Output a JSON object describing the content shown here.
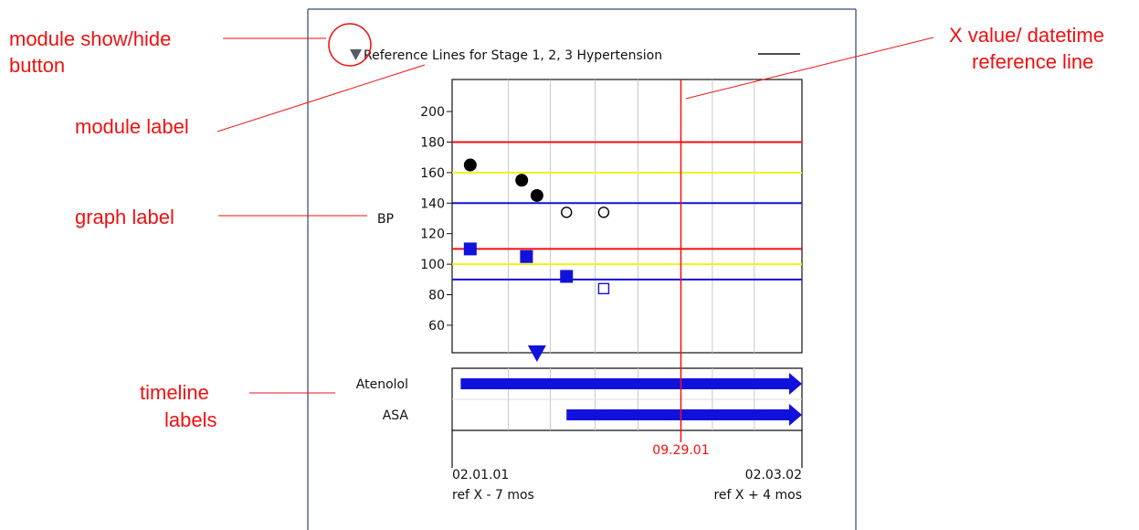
{
  "callouts": {
    "show_hide": [
      "module show/hide",
      "button"
    ],
    "module_label": "module label",
    "graph_label": "graph label",
    "timeline_labels": [
      "timeline",
      "labels"
    ],
    "ref_line": [
      "X value/ datetime",
      "reference line"
    ]
  },
  "module": {
    "toggle_icon": "triangle-down-icon",
    "title": "Reference Lines for Stage 1, 2, 3 Hypertension"
  },
  "colors": {
    "annotation": "#ee1111",
    "stage3": "#ee1111",
    "stage2": "#f2f21a",
    "stage1": "#1111dd",
    "marker": "#1111dd",
    "reference": "#ee1111"
  },
  "chart_data": {
    "type": "scatter",
    "ylabel": "BP",
    "y_ticks": [
      200,
      180,
      160,
      140,
      120,
      100,
      80,
      60
    ],
    "ylim": [
      42,
      221
    ],
    "x_dates": {
      "start": "02.01.01",
      "end": "02.03.02",
      "reference": "09.29.01"
    },
    "x_grid_dates": [
      "04.01.01",
      "05.15.01",
      "07.01.01",
      "08.15.01",
      "11.01.01",
      "12.15.01"
    ],
    "reference_lines": [
      {
        "value": 180,
        "color": "#ee1111"
      },
      {
        "value": 160,
        "color": "#f2f21a"
      },
      {
        "value": 140,
        "color": "#1111dd"
      },
      {
        "value": 110,
        "color": "#ee1111"
      },
      {
        "value": 100,
        "color": "#f2f21a"
      },
      {
        "value": 90,
        "color": "#1111dd"
      }
    ],
    "series": [
      {
        "marker": "circle",
        "points": [
          {
            "date": "02.20.01",
            "y": 165,
            "filled": true
          },
          {
            "date": "04.15.01",
            "y": 155,
            "filled": true
          },
          {
            "date": "05.01.01",
            "y": 145,
            "filled": true
          },
          {
            "date": "06.01.01",
            "y": 134,
            "filled": false
          },
          {
            "date": "07.10.01",
            "y": 134,
            "filled": false
          }
        ]
      },
      {
        "marker": "square",
        "points": [
          {
            "date": "02.20.01",
            "y": 110,
            "filled": true
          },
          {
            "date": "04.20.01",
            "y": 105,
            "filled": true
          },
          {
            "date": "06.01.01",
            "y": 92,
            "filled": true
          },
          {
            "date": "07.10.01",
            "y": 84,
            "filled": false
          }
        ]
      }
    ],
    "event_marker": {
      "date": "05.01.01"
    },
    "timeline": [
      {
        "label": "Atenolol",
        "start": "02.10.01",
        "end": "02.03.02"
      },
      {
        "label": "ASA",
        "start": "06.01.01",
        "end": "02.03.02"
      }
    ],
    "axis_labels": {
      "start_date": "02.01.01",
      "start_rel": "ref X - 7 mos",
      "end_date": "02.03.02",
      "end_rel": "ref X + 4 mos",
      "ref_date": "09.29.01"
    }
  }
}
